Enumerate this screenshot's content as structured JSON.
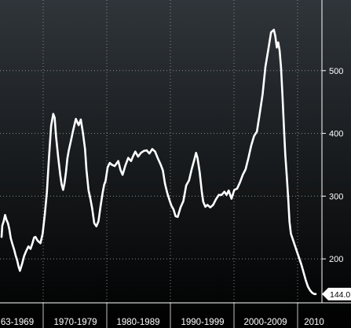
{
  "chart_data": {
    "type": "line",
    "title": "",
    "xlabel": "",
    "ylabel": "",
    "ylim": [
      130,
      600
    ],
    "xlim": [
      1966.5,
      2010.9
    ],
    "y_ticks": [
      200,
      300,
      400,
      500
    ],
    "y_tick_labels": [
      "200",
      "300",
      "400",
      "500"
    ],
    "grid": true,
    "grid_style": "dotted",
    "categories": [
      "63-1969",
      "1970-1979",
      "1980-1989",
      "1990-1999",
      "2000-2009",
      "2010"
    ],
    "last_value_label": "144.0",
    "colors": {
      "background_top": "#2f353a",
      "background_bottom": "#000000",
      "line": "#ffffff",
      "grid": "#8a8a8a",
      "label_box": "#ffffff"
    },
    "series": [
      {
        "x": [
          1966.5,
          1966.6,
          1966.8,
          1967.0,
          1967.2,
          1967.4,
          1967.6,
          1967.8,
          1968.0,
          1968.3,
          1968.5,
          1968.7,
          1968.9,
          1969.1,
          1969.4,
          1969.7,
          1970.0,
          1970.3,
          1970.6,
          1970.9,
          1971.1,
          1971.3,
          1971.6,
          1972.0,
          1972.3,
          1972.6,
          1972.9,
          1973.2,
          1973.5,
          1973.8,
          1974.0,
          1974.2,
          1974.5,
          1974.8,
          1975.0,
          1975.2,
          1975.4,
          1975.6,
          1975.8,
          1976.0,
          1976.3,
          1976.6,
          1977.0,
          1977.4,
          1977.7,
          1978.0,
          1978.3,
          1978.5,
          1978.8,
          1979.0,
          1979.3,
          1979.6,
          1979.9,
          1980.2,
          1980.5,
          1980.8,
          1981.0,
          1981.2,
          1981.5,
          1981.8,
          1982.1,
          1982.5,
          1983.0,
          1983.3,
          1983.6,
          1984.0,
          1984.4,
          1984.8,
          1985.1,
          1985.4,
          1985.8,
          1986.2,
          1986.6,
          1987.0,
          1987.4,
          1987.8,
          1988.2,
          1988.6,
          1989.0,
          1989.3,
          1989.6,
          1989.9,
          1990.2,
          1990.5,
          1990.8,
          1991.1,
          1991.4,
          1991.8,
          1992.2,
          1992.6,
          1993.0,
          1993.4,
          1993.7,
          1994.0,
          1994.2,
          1994.5,
          1994.8,
          1995.0,
          1995.3,
          1995.6,
          1996.0,
          1996.4,
          1996.8,
          1997.2,
          1997.6,
          1998.0,
          1998.3,
          1998.6,
          1999.0,
          1999.4,
          1999.8,
          2000.2,
          2000.6,
          2001.0,
          2001.4,
          2001.8,
          2002.2,
          2002.6,
          2003.0,
          2003.4,
          2003.8,
          2004.2,
          2004.6,
          2005.0,
          2005.2,
          2005.4,
          2005.6,
          2005.8,
          2006.0,
          2006.2,
          2006.4,
          2006.6,
          2006.8,
          2007.0,
          2007.2,
          2007.4,
          2007.7,
          2008.0,
          2008.3,
          2008.6,
          2008.9,
          2009.2,
          2009.5,
          2009.8,
          2010.1,
          2010.4,
          2010.7,
          2010.9
        ],
        "values": [
          235,
          253,
          260,
          270,
          262,
          257,
          247,
          233,
          225,
          214,
          205,
          198,
          188,
          181,
          192,
          205,
          213,
          220,
          216,
          226,
          234,
          235,
          229,
          225,
          240,
          270,
          306,
          362,
          412,
          431,
          425,
          395,
          362,
          333,
          318,
          310,
          321,
          338,
          360,
          373,
          388,
          404,
          423,
          413,
          422,
          401,
          375,
          342,
          309,
          299,
          281,
          257,
          252,
          260,
          284,
          306,
          318,
          324,
          346,
          353,
          350,
          348,
          356,
          342,
          334,
          349,
          361,
          356,
          364,
          371,
          363,
          369,
          372,
          373,
          368,
          375,
          371,
          360,
          350,
          341,
          320,
          306,
          295,
          285,
          279,
          268,
          267,
          282,
          292,
          317,
          325,
          344,
          356,
          369,
          361,
          338,
          307,
          291,
          283,
          286,
          282,
          286,
          295,
          302,
          302,
          307,
          302,
          309,
          296,
          310,
          312,
          322,
          334,
          343,
          361,
          381,
          396,
          403,
          432,
          462,
          506,
          533,
          561,
          565,
          555,
          537,
          545,
          532,
          505,
          461,
          412,
          366,
          334,
          299,
          259,
          240,
          230,
          220,
          210,
          200,
          190,
          178,
          166,
          156,
          150,
          146,
          144,
          144
        ]
      }
    ]
  }
}
